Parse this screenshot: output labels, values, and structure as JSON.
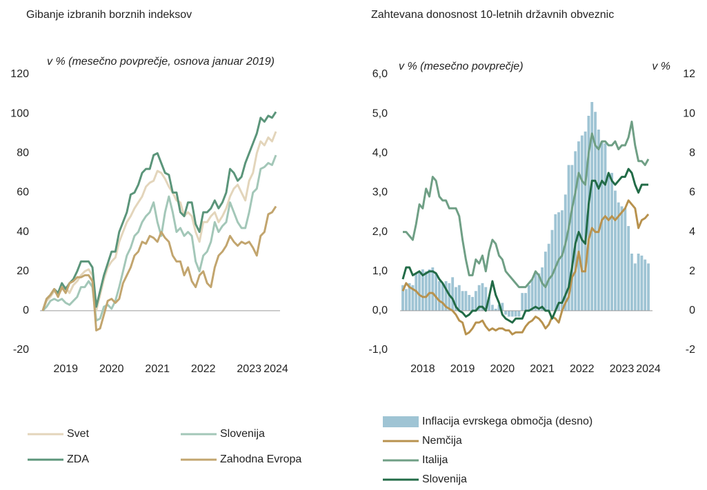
{
  "chart_data": [
    {
      "type": "line",
      "title": "Gibanje izbranih borznih indeksov",
      "subtitle": "v % (mesečno povprečje, osnova januar 2019)",
      "categories": [
        null,
        null,
        null,
        null,
        null,
        null,
        "2019",
        null,
        null,
        null,
        null,
        null,
        null,
        null,
        null,
        null,
        null,
        null,
        "2020",
        null,
        null,
        null,
        null,
        null,
        null,
        null,
        null,
        null,
        null,
        null,
        "2021",
        null,
        null,
        null,
        null,
        null,
        null,
        null,
        null,
        null,
        null,
        null,
        "2022",
        null,
        null,
        null,
        null,
        null,
        null,
        null,
        null,
        null,
        null,
        null,
        "2023",
        null,
        null,
        null,
        null,
        null,
        null,
        "2024"
      ],
      "ylim": [
        -20,
        120
      ],
      "yticks": [
        -20,
        0,
        20,
        40,
        60,
        80,
        100,
        120
      ],
      "series": [
        {
          "name": "Svet",
          "color": "#e3d5bb",
          "values": [
            0,
            5,
            7,
            10,
            8,
            11,
            12,
            9,
            13,
            15,
            18,
            20,
            21,
            18,
            0,
            8,
            16,
            22,
            25,
            27,
            35,
            40,
            45,
            48,
            52,
            55,
            58,
            63,
            65,
            66,
            71,
            70,
            67,
            63,
            60,
            56,
            55,
            48,
            50,
            48,
            40,
            35,
            45,
            45,
            48,
            50,
            45,
            48,
            52,
            58,
            62,
            64,
            60,
            56,
            66,
            70,
            80,
            86,
            84,
            88,
            86,
            91
          ]
        },
        {
          "name": "Slovenija",
          "color": "#a3c7b8",
          "values": [
            0,
            2,
            5,
            6,
            5,
            6,
            4,
            3,
            5,
            7,
            12,
            12,
            15,
            12,
            -5,
            -4,
            2,
            3,
            1,
            5,
            12,
            20,
            28,
            32,
            38,
            40,
            45,
            48,
            50,
            55,
            45,
            38,
            50,
            58,
            50,
            40,
            42,
            38,
            40,
            38,
            25,
            20,
            28,
            30,
            35,
            45,
            40,
            43,
            45,
            55,
            50,
            45,
            42,
            42,
            50,
            60,
            62,
            72,
            73,
            75,
            74,
            79
          ]
        },
        {
          "name": "ZDA",
          "color": "#5b957a",
          "values": [
            0,
            6,
            8,
            11,
            9,
            14,
            11,
            14,
            16,
            20,
            25,
            25,
            25,
            22,
            2,
            10,
            18,
            24,
            30,
            30,
            40,
            45,
            50,
            59,
            60,
            64,
            70,
            72,
            72,
            79,
            80,
            75,
            70,
            69,
            60,
            60,
            50,
            48,
            55,
            55,
            44,
            40,
            50,
            50,
            52,
            56,
            52,
            55,
            60,
            72,
            70,
            66,
            68,
            75,
            80,
            85,
            90,
            98,
            96,
            99,
            98,
            101
          ]
        },
        {
          "name": "Zahodna Evropa",
          "color": "#c2a56e",
          "values": [
            0,
            6,
            8,
            11,
            7,
            12,
            9,
            14,
            15,
            17,
            17,
            18,
            18,
            15,
            -10,
            -9,
            -2,
            5,
            6,
            4,
            6,
            14,
            18,
            22,
            28,
            30,
            35,
            34,
            38,
            37,
            35,
            40,
            37,
            35,
            28,
            25,
            25,
            18,
            22,
            15,
            12,
            18,
            20,
            14,
            12,
            22,
            28,
            30,
            33,
            38,
            35,
            33,
            35,
            34,
            35,
            32,
            28,
            38,
            40,
            49,
            50,
            53
          ]
        }
      ]
    },
    {
      "type": "combo",
      "title": "Zahtevana donosnost 10-letnih državnih obveznic",
      "subtitle": "v % (mesečno povprečje)",
      "y2label": "v %",
      "categories": [
        null,
        null,
        null,
        null,
        null,
        null,
        "2018",
        null,
        null,
        null,
        null,
        null,
        null,
        null,
        null,
        null,
        null,
        null,
        "2019",
        null,
        null,
        null,
        null,
        null,
        null,
        null,
        null,
        null,
        null,
        null,
        "2020",
        null,
        null,
        null,
        null,
        null,
        null,
        null,
        null,
        null,
        null,
        null,
        "2021",
        null,
        null,
        null,
        null,
        null,
        null,
        null,
        null,
        null,
        null,
        null,
        "2022",
        null,
        null,
        null,
        null,
        null,
        null,
        null,
        null,
        null,
        null,
        null,
        "2023",
        null,
        null,
        null,
        null,
        null,
        null,
        null,
        "2024"
      ],
      "ylim": [
        -1,
        6
      ],
      "yticks": [
        {
          "value": -1,
          "label": "-1,0"
        },
        {
          "value": 0,
          "label": "0,0"
        },
        {
          "value": 1,
          "label": "1,0"
        },
        {
          "value": 2,
          "label": "2,0"
        },
        {
          "value": 3,
          "label": "3,0"
        },
        {
          "value": 4,
          "label": "4,0"
        },
        {
          "value": 5,
          "label": "5,0"
        },
        {
          "value": 6,
          "label": "6,0"
        }
      ],
      "y2lim": [
        -2,
        12
      ],
      "y2ticks": [
        -2,
        0,
        2,
        4,
        6,
        8,
        10,
        12
      ],
      "series": [
        {
          "name": "Inflacija evrskega območja (desno)",
          "type": "bar",
          "axis": "y2",
          "color": "#9fc4d4",
          "values": [
            1.3,
            1.1,
            1.4,
            1.3,
            1.9,
            2.0,
            2.1,
            2.0,
            2.1,
            2.2,
            1.9,
            1.5,
            1.4,
            1.5,
            1.4,
            1.7,
            1.2,
            1.3,
            1.0,
            1.0,
            0.8,
            0.7,
            1.0,
            1.3,
            1.4,
            1.2,
            0.7,
            0.3,
            0.1,
            0.3,
            0.4,
            -0.2,
            -0.3,
            -0.3,
            -0.3,
            -0.3,
            0.9,
            0.9,
            1.3,
            1.6,
            2.0,
            1.9,
            2.2,
            3.0,
            3.4,
            4.1,
            4.9,
            5.0,
            5.1,
            5.9,
            7.4,
            7.4,
            8.1,
            8.6,
            8.9,
            9.1,
            9.9,
            10.6,
            10.1,
            9.2,
            8.6,
            8.5,
            6.9,
            7.0,
            6.1,
            5.5,
            5.3,
            5.2,
            4.3,
            2.9,
            2.4,
            2.9,
            2.8,
            2.6,
            2.4
          ]
        },
        {
          "name": "Nemčija",
          "type": "line",
          "color": "#b8924e",
          "values": [
            0.5,
            0.7,
            0.6,
            0.55,
            0.5,
            0.4,
            0.35,
            0.35,
            0.45,
            0.45,
            0.35,
            0.25,
            0.2,
            0.1,
            0.05,
            0.0,
            -0.1,
            -0.25,
            -0.3,
            -0.6,
            -0.55,
            -0.45,
            -0.3,
            -0.3,
            -0.25,
            -0.4,
            -0.5,
            -0.45,
            -0.5,
            -0.45,
            -0.45,
            -0.5,
            -0.5,
            -0.6,
            -0.55,
            -0.55,
            -0.55,
            -0.4,
            -0.3,
            -0.25,
            -0.15,
            -0.2,
            -0.3,
            -0.45,
            -0.35,
            -0.15,
            -0.2,
            -0.3,
            0.0,
            0.2,
            0.35,
            0.85,
            1.0,
            1.5,
            1.0,
            1.0,
            1.8,
            2.1,
            2.0,
            2.0,
            2.3,
            2.4,
            2.3,
            2.4,
            2.3,
            2.4,
            2.5,
            2.6,
            2.8,
            2.7,
            2.6,
            2.1,
            2.3,
            2.35,
            2.45
          ]
        },
        {
          "name": "Italija",
          "type": "line",
          "color": "#6f9f85",
          "values": [
            2.0,
            2.0,
            1.9,
            1.8,
            2.2,
            2.7,
            2.6,
            3.1,
            2.9,
            3.4,
            3.3,
            2.9,
            2.8,
            2.8,
            2.6,
            2.6,
            2.6,
            2.4,
            1.8,
            1.3,
            0.9,
            0.9,
            1.3,
            1.2,
            1.4,
            1.0,
            1.5,
            1.8,
            1.7,
            1.4,
            1.3,
            1.0,
            0.9,
            0.8,
            0.7,
            0.6,
            0.6,
            0.6,
            0.7,
            0.8,
            1.0,
            0.9,
            0.7,
            0.6,
            0.8,
            0.9,
            1.1,
            1.3,
            1.4,
            1.7,
            2.1,
            2.6,
            3.0,
            3.5,
            3.3,
            3.2,
            4.0,
            4.5,
            4.2,
            4.1,
            4.3,
            4.3,
            4.2,
            4.2,
            4.3,
            4.1,
            4.2,
            4.2,
            4.4,
            4.8,
            4.2,
            3.8,
            3.8,
            3.7,
            3.85
          ]
        },
        {
          "name": "Slovenija",
          "type": "line",
          "color": "#226b47",
          "values": [
            0.8,
            1.1,
            1.1,
            0.9,
            0.95,
            1.0,
            0.9,
            0.95,
            1.0,
            1.0,
            0.95,
            0.8,
            0.7,
            0.55,
            0.4,
            0.3,
            0.1,
            0.0,
            -0.05,
            -0.15,
            -0.1,
            0.0,
            0.0,
            0.1,
            0.1,
            0.0,
            0.35,
            0.75,
            0.4,
            0.2,
            -0.1,
            -0.2,
            -0.25,
            -0.3,
            -0.2,
            -0.2,
            -0.2,
            0.0,
            0.0,
            0.05,
            0.1,
            0.05,
            0.1,
            0.0,
            0.0,
            -0.2,
            0.0,
            0.2,
            0.2,
            0.4,
            0.6,
            1.1,
            1.7,
            2.0,
            1.8,
            1.7,
            2.7,
            3.3,
            3.3,
            3.1,
            3.3,
            3.2,
            3.5,
            3.3,
            3.2,
            3.3,
            3.4,
            3.4,
            3.6,
            3.5,
            3.2,
            3.0,
            3.2,
            3.2,
            3.2
          ]
        }
      ]
    }
  ]
}
